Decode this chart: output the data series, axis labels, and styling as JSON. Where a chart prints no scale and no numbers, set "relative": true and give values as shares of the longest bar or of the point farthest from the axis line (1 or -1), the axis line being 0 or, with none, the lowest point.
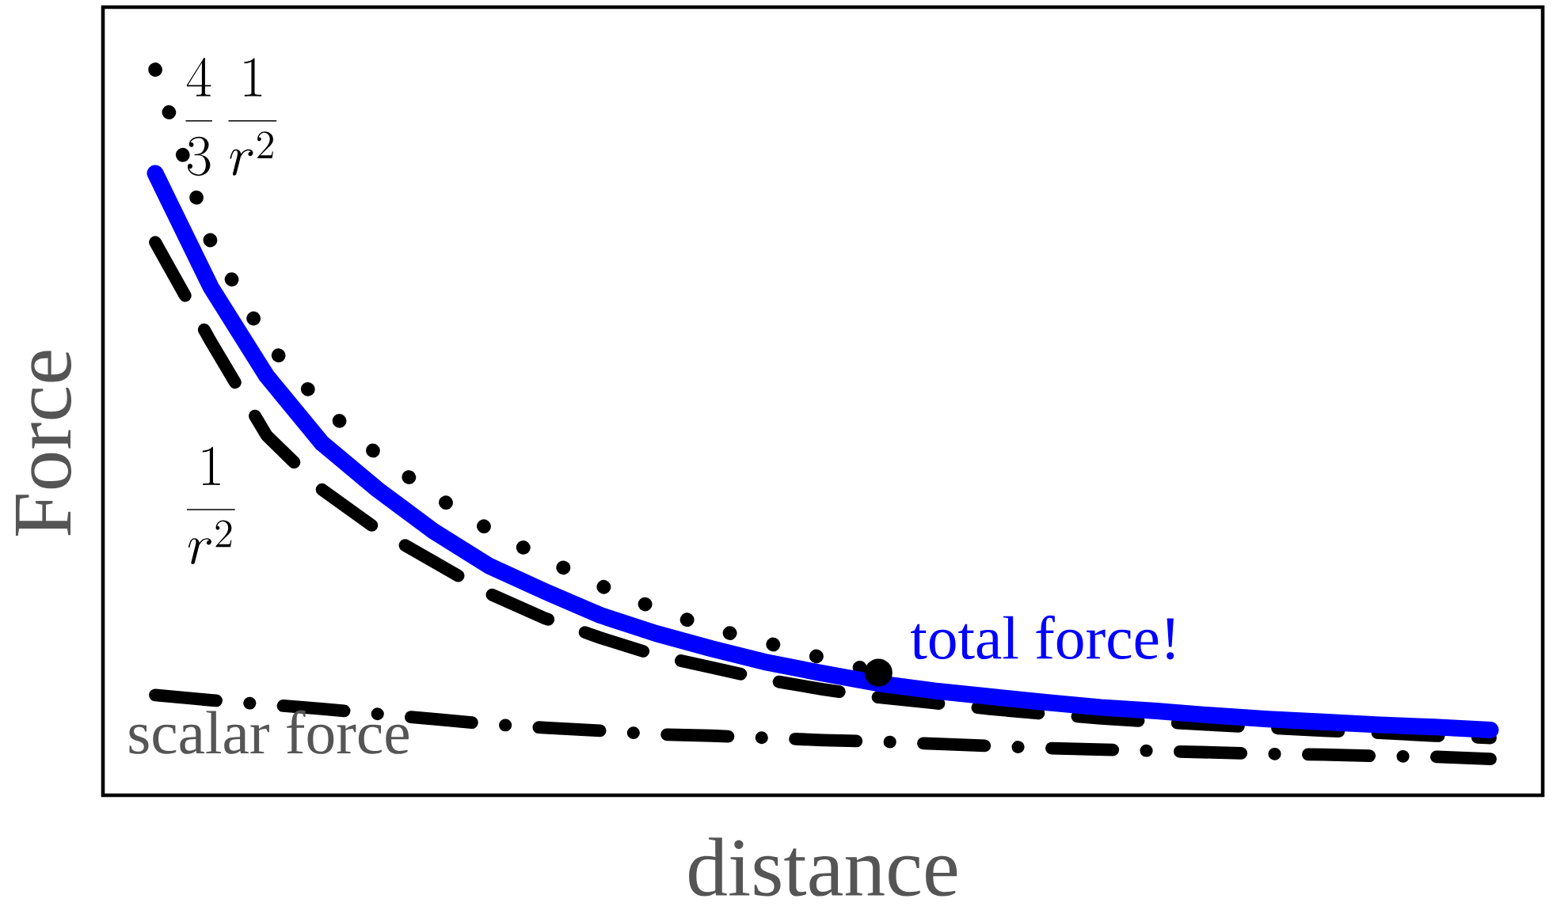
{
  "chart_data": {
    "type": "line",
    "relative": true,
    "xlabel": "distance",
    "ylabel": "Force",
    "categories": [
      null,
      null,
      null,
      null,
      null,
      null,
      null,
      null,
      null,
      null,
      null,
      null,
      null,
      null,
      null,
      null,
      null,
      null,
      null,
      null,
      null,
      null,
      null,
      null,
      null
    ],
    "series": [
      {
        "name": "\\frac{4}{3}\\,\\frac{1}{r^{2}}",
        "color": "#000000",
        "line_style": "dotted",
        "values": [
          1.0,
          0.762,
          0.625,
          0.537,
          0.469,
          0.414,
          0.366,
          0.326,
          0.289,
          0.257,
          0.23,
          0.21,
          0.189,
          0.169,
          null,
          null,
          null,
          null,
          null,
          null,
          null,
          null,
          null,
          null,
          null
        ]
      },
      {
        "name": "\\frac{1}{r^{2}}",
        "color": "#000000",
        "line_style": "dashed",
        "values": [
          0.762,
          0.625,
          0.496,
          0.421,
          0.366,
          0.322,
          0.278,
          0.244,
          0.217,
          0.193,
          0.176,
          0.159,
          0.146,
          0.135,
          0.127,
          0.119,
          0.112,
          0.106,
          0.101,
          0.097,
          0.093,
          0.089,
          0.086,
          0.082,
          0.079
        ]
      },
      {
        "name": "total force!",
        "color": "#0000ff",
        "line_style": "solid",
        "values": [
          0.857,
          0.7,
          0.578,
          0.485,
          0.421,
          0.364,
          0.316,
          0.281,
          0.248,
          0.223,
          0.202,
          0.183,
          0.168,
          0.154,
          0.144,
          0.136,
          0.128,
          0.121,
          0.116,
          0.11,
          0.105,
          0.101,
          0.097,
          0.094,
          0.09
        ]
      },
      {
        "name": "scalar force",
        "color": "#000000",
        "line_style": "dashdot",
        "values": [
          0.138,
          0.131,
          0.125,
          0.119,
          0.112,
          0.105,
          0.098,
          0.093,
          0.089,
          0.084,
          0.082,
          0.079,
          0.076,
          0.074,
          0.071,
          0.068,
          0.065,
          0.063,
          0.061,
          0.059,
          0.057,
          0.056,
          0.054,
          0.053,
          0.05
        ]
      }
    ]
  }
}
